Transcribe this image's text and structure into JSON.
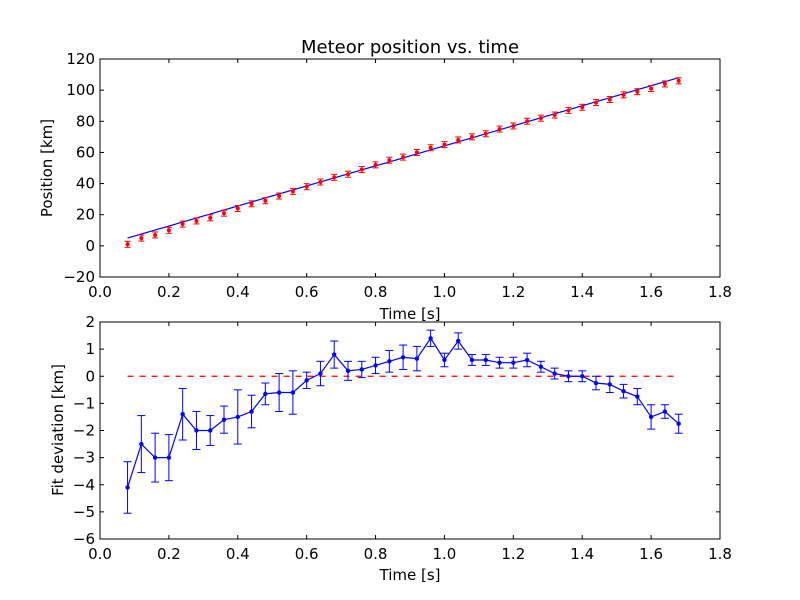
{
  "chart_data": [
    {
      "type": "scatter",
      "title": "Meteor position vs. time",
      "xlabel": "Time [s]",
      "ylabel": "Position [km]",
      "xlim": [
        0.0,
        1.8
      ],
      "ylim": [
        -20,
        120
      ],
      "xticks": [
        "0.0",
        "0.2",
        "0.4",
        "0.6",
        "0.8",
        "1.0",
        "1.2",
        "1.4",
        "1.6",
        "1.8"
      ],
      "yticks": [
        "−20",
        "0",
        "20",
        "40",
        "60",
        "80",
        "100",
        "120"
      ],
      "grid": false,
      "series": [
        {
          "style": "red error-bar points",
          "color": "#ff0000",
          "x": [
            0.08,
            0.12,
            0.16,
            0.2,
            0.24,
            0.28,
            0.32,
            0.36,
            0.4,
            0.44,
            0.48,
            0.52,
            0.56,
            0.6,
            0.64,
            0.68,
            0.72,
            0.76,
            0.8,
            0.84,
            0.88,
            0.92,
            0.96,
            1.0,
            1.04,
            1.08,
            1.12,
            1.16,
            1.2,
            1.24,
            1.28,
            1.32,
            1.36,
            1.4,
            1.44,
            1.48,
            1.52,
            1.56,
            1.6,
            1.64,
            1.68
          ],
          "y": [
            1,
            5,
            7,
            10,
            14,
            16,
            18,
            21,
            24,
            27,
            29,
            32,
            35,
            38,
            41,
            44,
            46,
            49,
            52,
            55,
            57,
            60,
            63,
            65,
            68,
            70,
            72,
            75,
            77,
            80,
            82,
            84,
            87,
            89,
            92,
            94,
            97,
            99,
            101,
            104,
            106
          ]
        },
        {
          "style": "blue fit line",
          "color": "#0000ff",
          "x": [
            0.08,
            1.68
          ],
          "y": [
            5,
            108
          ]
        }
      ]
    },
    {
      "type": "line",
      "xlabel": "Time [s]",
      "ylabel": "Fit deviation [km]",
      "xlim": [
        0.0,
        1.8
      ],
      "ylim": [
        -6,
        2
      ],
      "xticks": [
        "0.0",
        "0.2",
        "0.4",
        "0.6",
        "0.8",
        "1.0",
        "1.2",
        "1.4",
        "1.6",
        "1.8"
      ],
      "yticks": [
        "−6",
        "−5",
        "−4",
        "−3",
        "−2",
        "−1",
        "0",
        "1",
        "2"
      ],
      "grid": false,
      "series": [
        {
          "style": "blue line with error bars",
          "color": "#0000ff",
          "x": [
            0.08,
            0.12,
            0.16,
            0.2,
            0.24,
            0.28,
            0.32,
            0.36,
            0.4,
            0.44,
            0.48,
            0.52,
            0.56,
            0.6,
            0.64,
            0.68,
            0.72,
            0.76,
            0.8,
            0.84,
            0.88,
            0.92,
            0.96,
            1.0,
            1.04,
            1.08,
            1.12,
            1.16,
            1.2,
            1.24,
            1.28,
            1.32,
            1.36,
            1.4,
            1.44,
            1.48,
            1.52,
            1.56,
            1.6,
            1.64,
            1.68
          ],
          "y": [
            -4.1,
            -2.5,
            -3.0,
            -3.0,
            -1.4,
            -2.0,
            -2.0,
            -1.6,
            -1.5,
            -1.3,
            -0.65,
            -0.6,
            -0.6,
            -0.15,
            0.1,
            0.8,
            0.2,
            0.25,
            0.4,
            0.55,
            0.7,
            0.65,
            1.4,
            0.6,
            1.3,
            0.6,
            0.6,
            0.5,
            0.5,
            0.6,
            0.35,
            0.1,
            0.0,
            0.0,
            -0.25,
            -0.3,
            -0.55,
            -0.75,
            -1.5,
            -1.3,
            -1.75
          ],
          "err": [
            0.95,
            1.05,
            0.9,
            0.85,
            0.95,
            0.7,
            0.55,
            0.5,
            1.0,
            0.6,
            0.4,
            0.7,
            0.8,
            0.3,
            0.45,
            0.5,
            0.35,
            0.3,
            0.3,
            0.4,
            0.45,
            0.45,
            0.3,
            0.25,
            0.3,
            0.2,
            0.2,
            0.2,
            0.2,
            0.25,
            0.2,
            0.2,
            0.2,
            0.2,
            0.25,
            0.3,
            0.25,
            0.3,
            0.45,
            0.25,
            0.35
          ]
        },
        {
          "style": "red dashed zero line",
          "color": "#ff0000",
          "x": [
            0.08,
            1.68
          ],
          "y": [
            0,
            0
          ]
        }
      ]
    }
  ]
}
